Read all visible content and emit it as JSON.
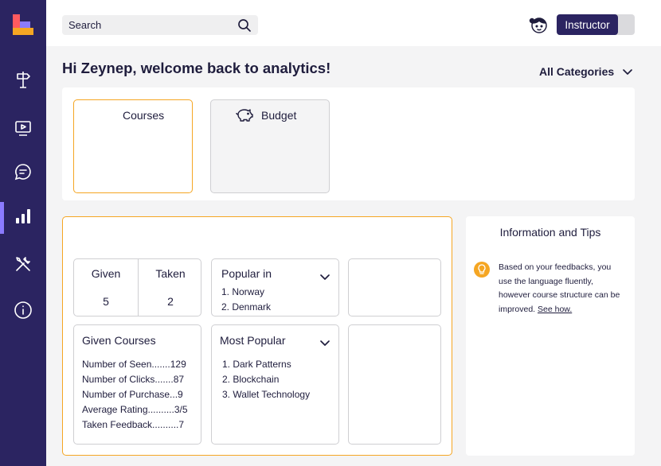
{
  "topbar": {
    "search_placeholder": "Search",
    "role_label": "Instructor"
  },
  "sidebar": {
    "items": [
      {
        "icon": "signpost-icon"
      },
      {
        "icon": "video-icon"
      },
      {
        "icon": "chat-icon"
      },
      {
        "icon": "bar-chart-icon",
        "active": true
      },
      {
        "icon": "tools-icon"
      },
      {
        "icon": "info-icon"
      }
    ]
  },
  "header": {
    "welcome": "Hi Zeynep, welcome back to analytics!",
    "category_filter": "All Categories"
  },
  "category_cards": {
    "courses": "Courses",
    "budget": "Budget"
  },
  "stats": {
    "given_label": "Given",
    "given_value": "5",
    "taken_label": "Taken",
    "taken_value": "2"
  },
  "popular_in": {
    "title": "Popular in",
    "items": [
      "1. Norway",
      "2. Denmark"
    ]
  },
  "given_courses": {
    "title": "Given Courses",
    "lines": [
      "Number of Seen.......129",
      "Number of Clicks.......87",
      "Number of Purchase...9",
      "Average Rating..........3/5",
      "Taken Feedback..........7"
    ]
  },
  "most_popular": {
    "title": "Most Popular",
    "items": [
      "1. Dark Patterns",
      "2. Blockchain",
      "3. Wallet Technology"
    ]
  },
  "tips": {
    "title": "Information and Tips",
    "text": "Based on your feedbacks, you use the language fluently, however course structure can be improved.",
    "link": "See how."
  },
  "colors": {
    "sidebar": "#2b2461",
    "accent": "#f5a623",
    "active_indicator": "#8b7bff"
  }
}
